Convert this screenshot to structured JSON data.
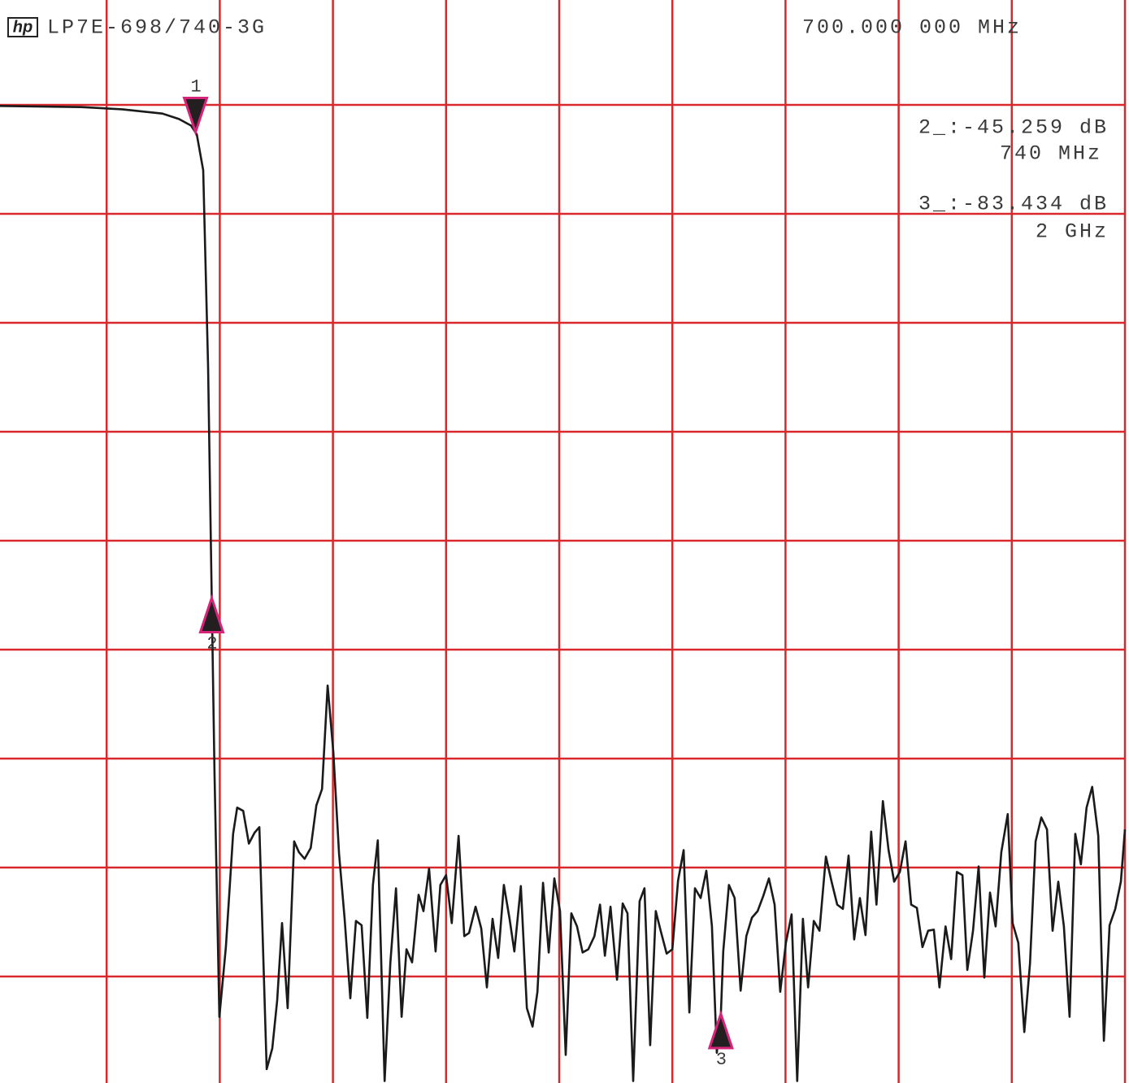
{
  "chart_data": {
    "type": "line",
    "logo": "hp",
    "title": "LP7E-698/740-3G",
    "header_right": "700.000 000 MHz",
    "readouts": [
      "2_:-45.259 dB",
      "740 MHz",
      "3_:-83.434 dB",
      "2 GHz"
    ],
    "xlim": [
      200,
      3000
    ],
    "ylim": [
      -90,
      10
    ],
    "xticks": [
      200,
      480,
      760,
      1040,
      1320,
      1600,
      1880,
      2160,
      2440,
      2720,
      3000
    ],
    "yticks": [
      10,
      0,
      -10,
      -20,
      -30,
      -40,
      -50,
      -60,
      -70,
      -80,
      -90
    ],
    "grid": true,
    "grid_color": "#d9282b",
    "color": "#1a1a1a",
    "marker_fill": "#231f20",
    "marker_stroke": "#d6247a",
    "markers": [
      {
        "label": "1",
        "x": 700,
        "y": -2.5,
        "direction": "down"
      },
      {
        "label": "2",
        "x": 740,
        "y": -45.259,
        "direction": "up"
      },
      {
        "label": "3",
        "x": 2000,
        "y": -83.434,
        "direction": "up"
      }
    ],
    "x": [
      216,
      417,
      518,
      618,
      659,
      689,
      703,
      719,
      731,
      740,
      747,
      759,
      775,
      793,
      803,
      818,
      832,
      846,
      858,
      876,
      890,
      902,
      914,
      928,
      944,
      956,
      970,
      985,
      999,
      1013,
      1027,
      1041,
      1055,
      1069,
      1083,
      1097,
      1111,
      1125,
      1139,
      1151,
      1168,
      1182,
      1196,
      1210,
      1222,
      1236,
      1252,
      1264,
      1278,
      1294,
      1306,
      1320,
      1334,
      1351,
      1365,
      1377,
      1393,
      1407,
      1421,
      1435,
      1449,
      1463,
      1477,
      1489,
      1505,
      1520,
      1534,
      1546,
      1560,
      1574,
      1588,
      1602,
      1616,
      1630,
      1644,
      1658,
      1672,
      1687,
      1701,
      1713,
      1727,
      1743,
      1757,
      1769,
      1783,
      1799,
      1811,
      1825,
      1839,
      1851,
      1866,
      1880,
      1894,
      1908,
      1922,
      1936,
      1950,
      1964,
      1978,
      1990,
      2000,
      2006,
      2020,
      2034,
      2049,
      2063,
      2077,
      2091,
      2105,
      2119,
      2133,
      2147,
      2161,
      2175,
      2189,
      2203,
      2216,
      2230,
      2244,
      2260,
      2274,
      2288,
      2302,
      2316,
      2330,
      2344,
      2358,
      2372,
      2385,
      2401,
      2415,
      2429,
      2443,
      2457,
      2471,
      2485,
      2499,
      2513,
      2527,
      2541,
      2556,
      2570,
      2584,
      2598,
      2610,
      2624,
      2638,
      2652,
      2666,
      2680,
      2694,
      2710,
      2722,
      2736,
      2751,
      2765,
      2779,
      2793,
      2807,
      2821,
      2835,
      2849,
      2863,
      2877,
      2891,
      2905,
      2919,
      2934,
      2948,
      2962,
      2976,
      2990,
      3000
    ],
    "values": [
      -0.1,
      -0.2,
      -0.4,
      -0.8,
      -1.3,
      -1.9,
      -2.7,
      -6.0,
      -24.0,
      -45.3,
      -61.3,
      -83.7,
      -77.3,
      -66.9,
      -64.5,
      -64.8,
      -67.8,
      -66.8,
      -66.3,
      -88.5,
      -86.6,
      -82.2,
      -75.1,
      -82.9,
      -67.6,
      -68.6,
      -69.2,
      -68.2,
      -64.3,
      -62.8,
      -53.3,
      -59.4,
      -68.7,
      -74.7,
      -82.0,
      -74.9,
      -75.3,
      -83.8,
      -71.6,
      -67.5,
      -89.6,
      -78.8,
      -71.9,
      -83.7,
      -77.5,
      -78.7,
      -72.5,
      -74.0,
      -70.1,
      -77.7,
      -71.6,
      -70.7,
      -75.1,
      -67.1,
      -76.3,
      -76.0,
      -73.6,
      -75.6,
      -81.0,
      -74.7,
      -78.3,
      -71.6,
      -74.7,
      -77.7,
      -71.7,
      -82.9,
      -84.6,
      -81.4,
      -71.4,
      -77.8,
      -71.0,
      -74.0,
      -87.2,
      -74.2,
      -75.4,
      -77.8,
      -77.5,
      -76.3,
      -73.4,
      -78.1,
      -73.6,
      -80.3,
      -73.3,
      -74.2,
      -89.6,
      -73.1,
      -71.9,
      -86.3,
      -74.0,
      -75.8,
      -77.9,
      -77.5,
      -71.2,
      -68.4,
      -83.3,
      -71.9,
      -72.8,
      -70.3,
      -75.4,
      -87.0,
      -83.4,
      -77.7,
      -71.6,
      -72.8,
      -81.3,
      -76.3,
      -74.6,
      -74.0,
      -72.6,
      -71.0,
      -73.4,
      -81.4,
      -76.9,
      -74.3,
      -89.6,
      -74.7,
      -81.0,
      -74.9,
      -75.8,
      -69.0,
      -71.3,
      -73.4,
      -73.8,
      -68.9,
      -76.6,
      -72.8,
      -76.2,
      -66.7,
      -73.4,
      -63.9,
      -68.4,
      -71.3,
      -70.4,
      -67.6,
      -73.4,
      -73.7,
      -77.3,
      -75.8,
      -75.7,
      -81.0,
      -75.4,
      -78.4,
      -70.4,
      -70.7,
      -79.4,
      -75.8,
      -69.9,
      -80.1,
      -72.3,
      -75.4,
      -68.6,
      -65.1,
      -75.1,
      -76.9,
      -85.1,
      -78.8,
      -67.6,
      -65.4,
      -66.5,
      -75.8,
      -71.3,
      -75.4,
      -83.7,
      -66.9,
      -69.7,
      -64.5,
      -62.6,
      -67.1,
      -85.9,
      -75.3,
      -73.8,
      -71.3,
      -66.5
    ]
  }
}
